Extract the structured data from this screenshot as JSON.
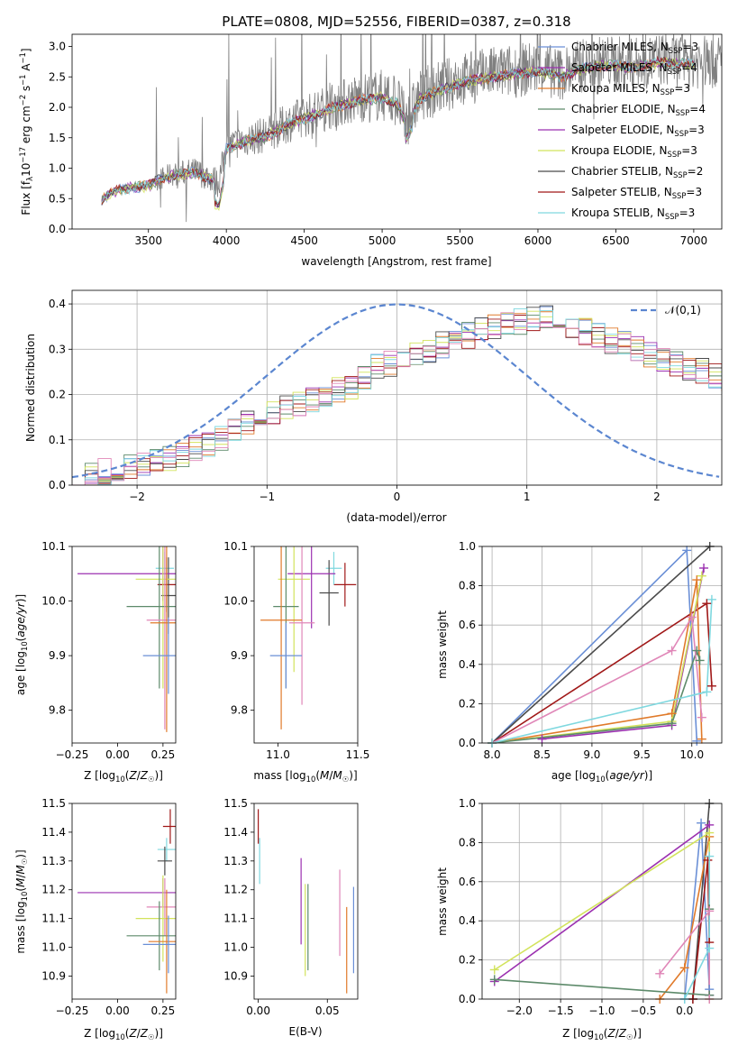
{
  "figure_title": "PLATE=0808, MJD=52556, FIBERID=0387, z=0.318",
  "colors": {
    "Chabrier MILES": "#6a8fd6",
    "Salpeter MILES": "#9b30b0",
    "Kroupa MILES": "#e07a2a",
    "Chabrier ELODIE": "#5d8a6a",
    "Salpeter ELODIE": "#9b30b0",
    "Kroupa ELODIE": "#d2e35c",
    "Chabrier STELIB": "#4a4a4a",
    "Salpeter STELIB": "#a01818",
    "Kroupa STELIB": "#7fd8df",
    "data": "#808080",
    "pink": "#e087b8",
    "normal": "#5b86d0"
  },
  "chart_data": [
    {
      "type": "line",
      "id": "spectrum",
      "title": "PLATE=0808, MJD=52556, FIBERID=0387, z=0.318",
      "xlabel": "wavelength [Angstrom, rest frame]",
      "ylabel": "Flux [f_λ 10^-17 erg cm^-2 s^-1 A^-1]",
      "xlim": [
        3010,
        7180
      ],
      "ylim": [
        0,
        3.2
      ],
      "xticks": [
        3500,
        4000,
        4500,
        5000,
        5500,
        6000,
        6500,
        7000
      ],
      "yticks": [
        0.0,
        0.5,
        1.0,
        1.5,
        2.0,
        2.5,
        3.0
      ],
      "legend_position": "right",
      "data_spectrum": {
        "x": [
          3200,
          3300,
          3400,
          3500,
          3550,
          3650,
          3800,
          3900,
          3950,
          4000,
          4100,
          4250,
          4400,
          4500,
          4600,
          4700,
          4850,
          5000,
          5100,
          5150,
          5250,
          5400,
          5500,
          5600,
          5700,
          5850,
          6000,
          6150,
          6300,
          6450,
          6600,
          6800,
          7000
        ],
        "y": [
          0.5,
          0.65,
          0.7,
          0.72,
          0.8,
          0.9,
          0.95,
          0.85,
          0.75,
          1.35,
          1.45,
          1.55,
          1.75,
          1.85,
          1.95,
          2.05,
          2.15,
          2.2,
          2.1,
          1.75,
          2.2,
          2.35,
          2.45,
          2.5,
          2.55,
          2.6,
          2.65,
          2.55,
          2.7,
          2.75,
          2.7,
          2.8,
          2.75
        ],
        "noise_start_x": 3550,
        "noise_amplitude": 0.45
      },
      "series": [
        {
          "name": "Chabrier MILES, N_SSP=3",
          "label_main": "Chabrier MILES, N",
          "label_sub": "SSP",
          "label_val": "=3",
          "color": "#6a8fd6"
        },
        {
          "name": "Salpeter MILES, N_SSP=4",
          "label_main": "Salpeter MILES, N",
          "label_sub": "SSP",
          "label_val": "=4",
          "color": "#9b30b0"
        },
        {
          "name": "Kroupa MILES, N_SSP=3",
          "label_main": "Kroupa MILES, N",
          "label_sub": "SSP",
          "label_val": "=3",
          "color": "#e07a2a"
        },
        {
          "name": "Chabrier ELODIE, N_SSP=4",
          "label_main": "Chabrier ELODIE, N",
          "label_sub": "SSP",
          "label_val": "=4",
          "color": "#5d8a6a"
        },
        {
          "name": "Salpeter ELODIE, N_SSP=3",
          "label_main": "Salpeter ELODIE, N",
          "label_sub": "SSP",
          "label_val": "=3",
          "color": "#9b30b0"
        },
        {
          "name": "Kroupa ELODIE, N_SSP=3",
          "label_main": "Kroupa ELODIE, N",
          "label_sub": "SSP",
          "label_val": "=3",
          "color": "#d2e35c"
        },
        {
          "name": "Chabrier STELIB, N_SSP=2",
          "label_main": "Chabrier STELIB, N",
          "label_sub": "SSP",
          "label_val": "=2",
          "color": "#4a4a4a"
        },
        {
          "name": "Salpeter STELIB, N_SSP=3",
          "label_main": "Salpeter STELIB, N",
          "label_sub": "SSP",
          "label_val": "=3",
          "color": "#a01818"
        },
        {
          "name": "Kroupa STELIB, N_SSP=3",
          "label_main": "Kroupa STELIB, N",
          "label_sub": "SSP",
          "label_val": "=3",
          "color": "#7fd8df"
        }
      ]
    },
    {
      "type": "line",
      "id": "residuals",
      "xlabel": "(data-model)/error",
      "ylabel": "Normed distribution",
      "xlim": [
        -2.5,
        2.5
      ],
      "ylim": [
        0,
        0.43
      ],
      "xticks": [
        -2,
        -1,
        0,
        1,
        2
      ],
      "yticks": [
        0.0,
        0.1,
        0.2,
        0.3,
        0.4
      ],
      "grid": true,
      "legend": "𝒩(0,1)",
      "legend_position": "top-right",
      "bin_width": 0.1,
      "bin_start": -2.5,
      "bins_mean": [
        0.02,
        0.025,
        0.03,
        0.035,
        0.04,
        0.045,
        0.05,
        0.06,
        0.07,
        0.08,
        0.09,
        0.1,
        0.12,
        0.14,
        0.15,
        0.16,
        0.17,
        0.18,
        0.19,
        0.2,
        0.21,
        0.22,
        0.24,
        0.26,
        0.27,
        0.28,
        0.29,
        0.3,
        0.31,
        0.32,
        0.33,
        0.34,
        0.35,
        0.36,
        0.36,
        0.37,
        0.37,
        0.36,
        0.35,
        0.34,
        0.33,
        0.32,
        0.31,
        0.3,
        0.29,
        0.28,
        0.27,
        0.26,
        0.25,
        0.24,
        0.23,
        0.21,
        0.19,
        0.17,
        0.15,
        0.13,
        0.11,
        0.1,
        0.09,
        0.08,
        0.07,
        0.06,
        0.055,
        0.05,
        0.045,
        0.04,
        0.035,
        0.03,
        0.03,
        0.03,
        0.025,
        0.025,
        0.02,
        0.02,
        0.02,
        0.02,
        0.02,
        0.02,
        0.02,
        0.02
      ],
      "series_colors": [
        "#6a8fd6",
        "#9b30b0",
        "#e07a2a",
        "#5d8a6a",
        "#d2e35c",
        "#4a4a4a",
        "#a01818",
        "#7fd8df",
        "#e087b8"
      ]
    },
    {
      "type": "scatter",
      "id": "age_vs_Z",
      "xlabel": "Z [log10(Z/Z☉)]",
      "ylabel": "age [log10(age/yr)]",
      "xlim": [
        -0.25,
        0.32
      ],
      "ylim": [
        9.74,
        10.1
      ],
      "xticks": [
        -0.25,
        0.0,
        0.25
      ],
      "yticks": [
        9.8,
        9.9,
        10.0,
        10.1
      ],
      "points": [
        {
          "x": 0.26,
          "y": 10.06,
          "xerr": 0.05,
          "yerr": 0.03,
          "color": "#7fd8df"
        },
        {
          "x": 0.27,
          "y": 10.03,
          "xerr": 0.05,
          "yerr": 0.05,
          "color": "#a01818"
        },
        {
          "x": 0.28,
          "y": 10.01,
          "xerr": 0.04,
          "yerr": 0.07,
          "color": "#4a4a4a"
        },
        {
          "x": 0.25,
          "y": 10.05,
          "xerr": 0.47,
          "yerr": 0.05,
          "color": "#9b30b0"
        },
        {
          "x": 0.25,
          "y": 10.04,
          "xerr": 0.15,
          "yerr": 0.2,
          "color": "#d2e35c"
        },
        {
          "x": 0.23,
          "y": 9.99,
          "xerr": 0.18,
          "yerr": 0.15,
          "color": "#5d8a6a"
        },
        {
          "x": 0.26,
          "y": 9.965,
          "xerr": 0.1,
          "yerr": 0.2,
          "color": "#e087b8"
        },
        {
          "x": 0.27,
          "y": 9.96,
          "xerr": 0.09,
          "yerr": 0.2,
          "color": "#e07a2a"
        },
        {
          "x": 0.28,
          "y": 9.9,
          "xerr": 0.14,
          "yerr": 0.07,
          "color": "#6a8fd6"
        }
      ]
    },
    {
      "type": "scatter",
      "id": "age_vs_mass",
      "xlabel": "mass [log10(M/M☉)]",
      "ylabel": "",
      "xlim": [
        10.85,
        11.5
      ],
      "ylim": [
        9.74,
        10.1
      ],
      "xticks": [
        11.0,
        11.5
      ],
      "yticks": [
        9.8,
        9.9,
        10.0,
        10.1
      ],
      "points": [
        {
          "x": 11.42,
          "y": 10.03,
          "xerr": 0.07,
          "yerr": 0.04,
          "color": "#a01818"
        },
        {
          "x": 11.35,
          "y": 10.06,
          "xerr": 0.05,
          "yerr": 0.03,
          "color": "#7fd8df"
        },
        {
          "x": 11.32,
          "y": 10.015,
          "xerr": 0.06,
          "yerr": 0.06,
          "color": "#4a4a4a"
        },
        {
          "x": 11.21,
          "y": 10.05,
          "xerr": 0.15,
          "yerr": 0.1,
          "color": "#9b30b0"
        },
        {
          "x": 11.1,
          "y": 10.04,
          "xerr": 0.1,
          "yerr": 0.17,
          "color": "#d2e35c"
        },
        {
          "x": 11.05,
          "y": 9.99,
          "xerr": 0.08,
          "yerr": 0.15,
          "color": "#5d8a6a"
        },
        {
          "x": 11.15,
          "y": 9.96,
          "xerr": 0.08,
          "yerr": 0.15,
          "color": "#e087b8"
        },
        {
          "x": 11.02,
          "y": 9.965,
          "xerr": 0.13,
          "yerr": 0.2,
          "color": "#e07a2a"
        },
        {
          "x": 11.05,
          "y": 9.9,
          "xerr": 0.1,
          "yerr": 0.06,
          "color": "#6a8fd6"
        }
      ]
    },
    {
      "type": "line",
      "id": "massweight_vs_age",
      "xlabel": "age [log10(age/yr)]",
      "ylabel": "mass weight",
      "xlim": [
        7.9,
        10.3
      ],
      "ylim": [
        0,
        1.0
      ],
      "xticks": [
        8.0,
        8.5,
        9.0,
        9.5,
        10.0
      ],
      "yticks": [
        0.0,
        0.2,
        0.4,
        0.6,
        0.8,
        1.0
      ],
      "grid": true,
      "series": [
        {
          "color": "#6a8fd6",
          "x": [
            8.0,
            9.95,
            10.05
          ],
          "y": [
            0.0,
            0.98,
            0.01
          ]
        },
        {
          "color": "#4a4a4a",
          "x": [
            8.0,
            10.18
          ],
          "y": [
            0.0,
            1.0
          ]
        },
        {
          "color": "#a01818",
          "x": [
            8.0,
            10.15,
            10.2
          ],
          "y": [
            0.0,
            0.71,
            0.29
          ]
        },
        {
          "color": "#9b30b0",
          "x": [
            8.5,
            9.8,
            10.12
          ],
          "y": [
            0.02,
            0.09,
            0.89
          ]
        },
        {
          "color": "#e07a2a",
          "x": [
            8.0,
            9.8,
            10.05,
            10.1
          ],
          "y": [
            0.0,
            0.15,
            0.83,
            0.02
          ]
        },
        {
          "color": "#d2e35c",
          "x": [
            8.0,
            9.8,
            10.1
          ],
          "y": [
            0.0,
            0.11,
            0.85
          ]
        },
        {
          "color": "#5d8a6a",
          "x": [
            8.0,
            9.8,
            10.05,
            10.08
          ],
          "y": [
            0.0,
            0.1,
            0.47,
            0.42
          ]
        },
        {
          "color": "#e087b8",
          "x": [
            8.0,
            9.8,
            10.0,
            10.1
          ],
          "y": [
            0.0,
            0.47,
            0.64,
            0.13
          ]
        },
        {
          "color": "#7fd8df",
          "x": [
            8.0,
            10.15,
            10.2
          ],
          "y": [
            0.0,
            0.26,
            0.73
          ]
        }
      ]
    },
    {
      "type": "scatter",
      "id": "mass_vs_Z",
      "xlabel": "Z [log10(Z/Z☉)]",
      "ylabel": "mass [log10(M/M☉)]",
      "xlim": [
        -0.25,
        0.32
      ],
      "ylim": [
        10.82,
        11.5
      ],
      "xticks": [
        -0.25,
        0.0,
        0.25
      ],
      "yticks": [
        10.9,
        11.0,
        11.1,
        11.2,
        11.3,
        11.4,
        11.5
      ],
      "points": [
        {
          "x": 0.29,
          "y": 11.42,
          "xerr": 0.04,
          "yerr": 0.06,
          "color": "#a01818"
        },
        {
          "x": 0.27,
          "y": 11.34,
          "xerr": 0.05,
          "yerr": 0.04,
          "color": "#7fd8df"
        },
        {
          "x": 0.26,
          "y": 11.3,
          "xerr": 0.04,
          "yerr": 0.05,
          "color": "#4a4a4a"
        },
        {
          "x": 0.25,
          "y": 11.19,
          "xerr": 0.47,
          "yerr": 0.05,
          "color": "#9b30b0"
        },
        {
          "x": 0.26,
          "y": 11.14,
          "xerr": 0.1,
          "yerr": 0.1,
          "color": "#e087b8"
        },
        {
          "x": 0.25,
          "y": 11.1,
          "xerr": 0.15,
          "yerr": 0.15,
          "color": "#d2e35c"
        },
        {
          "x": 0.23,
          "y": 11.04,
          "xerr": 0.18,
          "yerr": 0.12,
          "color": "#5d8a6a"
        },
        {
          "x": 0.27,
          "y": 11.02,
          "xerr": 0.1,
          "yerr": 0.18,
          "color": "#e07a2a"
        },
        {
          "x": 0.28,
          "y": 11.01,
          "xerr": 0.14,
          "yerr": 0.1,
          "color": "#6a8fd6"
        }
      ]
    },
    {
      "type": "scatter",
      "id": "mass_vs_EBV",
      "xlabel": "E(B-V)",
      "ylabel": "",
      "xlim": [
        -0.003,
        0.072
      ],
      "ylim": [
        10.82,
        11.5
      ],
      "xticks": [
        0.0,
        0.05
      ],
      "yticks": [
        10.9,
        11.0,
        11.1,
        11.2,
        11.3,
        11.4,
        11.5
      ],
      "points": [
        {
          "x": 0.0,
          "y": 11.42,
          "xerr": 0,
          "yerr": 0.06,
          "color": "#a01818"
        },
        {
          "x": 0.001,
          "y": 11.3,
          "xerr": 0,
          "yerr": 0.08,
          "color": "#7fd8df"
        },
        {
          "x": 0.031,
          "y": 11.16,
          "xerr": 0,
          "yerr": 0.15,
          "color": "#9b30b0"
        },
        {
          "x": 0.034,
          "y": 11.06,
          "xerr": 0,
          "yerr": 0.16,
          "color": "#d2e35c"
        },
        {
          "x": 0.036,
          "y": 11.07,
          "xerr": 0,
          "yerr": 0.15,
          "color": "#5d8a6a"
        },
        {
          "x": 0.059,
          "y": 11.12,
          "xerr": 0,
          "yerr": 0.15,
          "color": "#e087b8"
        },
        {
          "x": 0.064,
          "y": 10.99,
          "xerr": 0,
          "yerr": 0.15,
          "color": "#e07a2a"
        },
        {
          "x": 0.069,
          "y": 11.06,
          "xerr": 0,
          "yerr": 0.15,
          "color": "#6a8fd6"
        }
      ]
    },
    {
      "type": "line",
      "id": "massweight_vs_Z",
      "xlabel": "Z [log10(Z/Z☉)]",
      "ylabel": "mass weight",
      "xlim": [
        -2.45,
        0.45
      ],
      "ylim": [
        0,
        1.0
      ],
      "xticks": [
        -2.0,
        -1.5,
        -1.0,
        -0.5,
        0.0
      ],
      "yticks": [
        0.0,
        0.2,
        0.4,
        0.6,
        0.8,
        1.0
      ],
      "grid": true,
      "series": [
        {
          "color": "#6a8fd6",
          "x": [
            0.0,
            0.2,
            0.3
          ],
          "y": [
            0.0,
            0.9,
            0.05
          ]
        },
        {
          "color": "#4a4a4a",
          "x": [
            0.1,
            0.3
          ],
          "y": [
            0.0,
            1.0
          ]
        },
        {
          "color": "#a01818",
          "x": [
            0.1,
            0.28,
            0.3
          ],
          "y": [
            0.0,
            0.71,
            0.29
          ]
        },
        {
          "color": "#9b30b0",
          "x": [
            -2.3,
            0.3,
            0.3
          ],
          "y": [
            0.09,
            0.89,
            0.02
          ]
        },
        {
          "color": "#e07a2a",
          "x": [
            -0.3,
            0.0,
            0.3
          ],
          "y": [
            0.0,
            0.16,
            0.83
          ]
        },
        {
          "color": "#d2e35c",
          "x": [
            -2.3,
            0.3,
            0.3
          ],
          "y": [
            0.15,
            0.85,
            0.0
          ]
        },
        {
          "color": "#5d8a6a",
          "x": [
            -2.3,
            0.3,
            0.3
          ],
          "y": [
            0.1,
            0.02,
            0.46
          ]
        },
        {
          "color": "#e087b8",
          "x": [
            -0.3,
            0.3,
            0.3
          ],
          "y": [
            0.13,
            0.45,
            0.0
          ]
        },
        {
          "color": "#7fd8df",
          "x": [
            0.0,
            0.3,
            0.3
          ],
          "y": [
            0.0,
            0.26,
            0.73
          ]
        }
      ]
    }
  ]
}
